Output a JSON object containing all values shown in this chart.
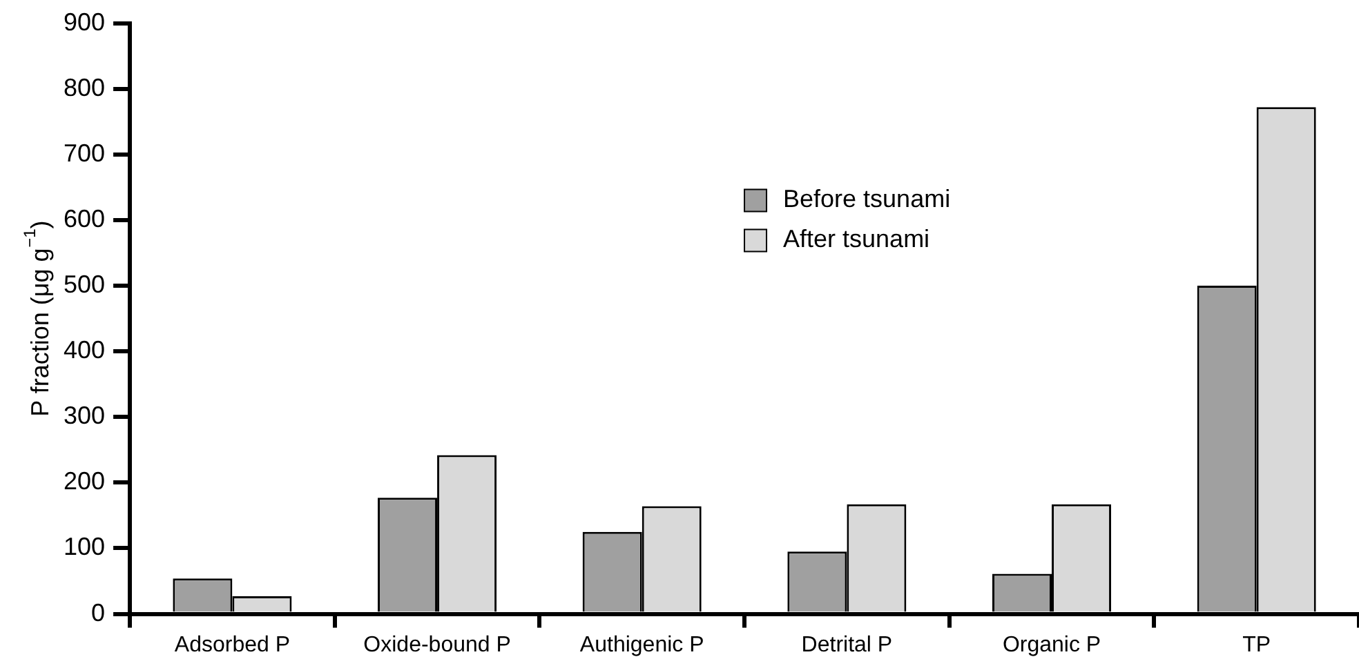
{
  "chart_data": {
    "type": "bar",
    "ylabel": "P fraction (μg g$^{−1}$)",
    "categories": [
      "Adsorbed P",
      "Oxide-bound P",
      "Authigenic P",
      "Detrital P",
      "Organic P",
      "TP"
    ],
    "series": [
      {
        "name": "Before tsunami",
        "color": "#a0a0a0",
        "values": [
          54,
          177,
          125,
          95,
          61,
          500
        ]
      },
      {
        "name": "After tsunami",
        "color": "#d9d9d9",
        "values": [
          27,
          242,
          164,
          167,
          167,
          772
        ]
      }
    ],
    "ylim": [
      0,
      900
    ],
    "yticks": [
      0,
      100,
      200,
      300,
      400,
      500,
      600,
      700,
      800,
      900
    ],
    "grid": false,
    "legend": "top"
  }
}
